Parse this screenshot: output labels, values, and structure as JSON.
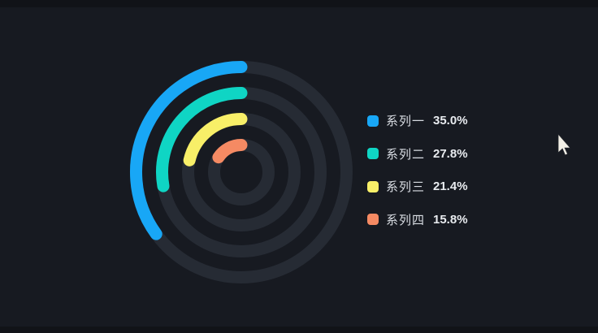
{
  "canvas": {
    "background_color": "#171a21",
    "edge_strip_color": "#111318"
  },
  "chart_data": {
    "type": "radial-progress",
    "title": "",
    "start_angle_deg": 90,
    "direction": "counterclockwise",
    "rounded_caps": true,
    "track_color": "#262b34",
    "value_range": [
      0,
      100
    ],
    "rings_outer_to_inner": [
      "系列一",
      "系列二",
      "系列三",
      "系列四"
    ],
    "series": [
      {
        "name": "系列一",
        "value_pct": 35.0,
        "percent_label": "35.0%",
        "color": "#18a7f6"
      },
      {
        "name": "系列二",
        "value_pct": 27.8,
        "percent_label": "27.8%",
        "color": "#0fd5c4"
      },
      {
        "name": "系列三",
        "value_pct": 21.4,
        "percent_label": "21.4%",
        "color": "#f8ef68"
      },
      {
        "name": "系列四",
        "value_pct": 15.8,
        "percent_label": "15.8%",
        "color": "#f58a63"
      }
    ],
    "legend_position": "right"
  },
  "cursor": {
    "visible": true,
    "color": "#f2efe6"
  }
}
